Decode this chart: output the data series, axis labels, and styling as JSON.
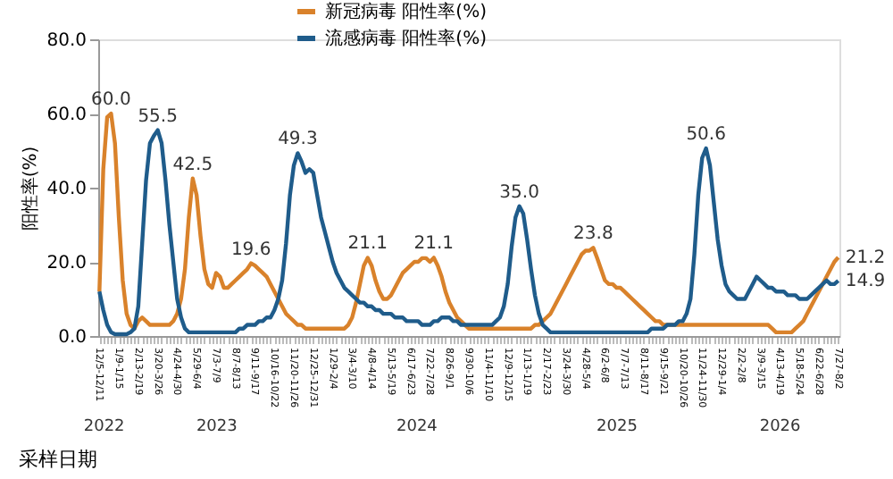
{
  "chart_data": {
    "type": "line",
    "xlabel": "采样日期",
    "ylabel": "阳性率(%)",
    "ylim": [
      0,
      80
    ],
    "yticks": [
      {
        "value": 0,
        "label": "0.0"
      },
      {
        "value": 20,
        "label": "20.0"
      },
      {
        "value": 40,
        "label": "40.0"
      },
      {
        "value": 60,
        "label": "60.0"
      },
      {
        "value": 80,
        "label": "80.0"
      }
    ],
    "grid": false,
    "legend": "top",
    "marker": "none",
    "line_style": "solid",
    "categories": [
      "12/5-12/11",
      null,
      null,
      null,
      null,
      "1/9-1/15",
      null,
      null,
      null,
      null,
      "2/13-2/19",
      null,
      null,
      null,
      null,
      "3/20-3/26",
      null,
      null,
      null,
      null,
      "4/24-4/30",
      null,
      null,
      null,
      null,
      "5/29-6/4",
      null,
      null,
      null,
      null,
      "7/3-7/9",
      null,
      null,
      null,
      null,
      "8/7-8/13",
      null,
      null,
      null,
      null,
      "9/11-9/17",
      null,
      null,
      null,
      null,
      "10/16-10/22",
      null,
      null,
      null,
      null,
      "11/20-11/26",
      null,
      null,
      null,
      null,
      "12/25-12/31",
      null,
      null,
      null,
      null,
      "1/29-2/4",
      null,
      null,
      null,
      null,
      "3/4-3/10",
      null,
      null,
      null,
      null,
      "4/8-4/14",
      null,
      null,
      null,
      null,
      "5/13-5/19",
      null,
      null,
      null,
      null,
      "6/17-6/23",
      null,
      null,
      null,
      null,
      "7/22-7/28",
      null,
      null,
      null,
      null,
      "8/26-9/1",
      null,
      null,
      null,
      null,
      "9/30-10/6",
      null,
      null,
      null,
      null,
      "11/4-11/10",
      null,
      null,
      null,
      null,
      "12/9-12/15",
      null,
      null,
      null,
      null,
      "1/13-1/19",
      null,
      null,
      null,
      null,
      "2/17-2/23",
      null,
      null,
      null,
      null,
      "3/24-3/30",
      null,
      null,
      null,
      null,
      "4/28-5/4",
      null,
      null,
      null,
      null,
      "6/2-6/8",
      null,
      null,
      null,
      null,
      "7/7-7/13",
      null,
      null,
      null,
      null,
      "8/11-8/17",
      null,
      null,
      null,
      null,
      "9/15-9/21",
      null,
      null,
      null,
      null,
      "10/20-10/26",
      null,
      null,
      null,
      null,
      "11/24-11/30",
      null,
      null,
      null,
      null,
      "12/29-1/4",
      null,
      null,
      null,
      null,
      "2/2-2/8",
      null,
      null,
      null,
      null,
      "3/9-3/15",
      null,
      null,
      null,
      null,
      "4/13-4/19",
      null,
      null,
      null,
      null,
      "5/18-5/24",
      null,
      null,
      null,
      null,
      "6/22-6/28",
      null,
      null,
      null,
      null,
      "7/27-8/2"
    ],
    "series": [
      {
        "name": "新冠病毒 阳性率(%)",
        "color": "#d9822b",
        "values": [
          12,
          45,
          59,
          60,
          52,
          32,
          15,
          6,
          3,
          2,
          4,
          5,
          4,
          3,
          3,
          3,
          3,
          3,
          3,
          4,
          6,
          10,
          18,
          32,
          42.5,
          38,
          27,
          18,
          14,
          13,
          17,
          16,
          13,
          13,
          14,
          15,
          16,
          17,
          18,
          19.6,
          19,
          18,
          17,
          16,
          14,
          12,
          10,
          8,
          6,
          5,
          4,
          3,
          3,
          2,
          2,
          2,
          2,
          2,
          2,
          2,
          2,
          2,
          2,
          2,
          3,
          5,
          9,
          14,
          19,
          21.1,
          19,
          15,
          12,
          10,
          10,
          11,
          13,
          15,
          17,
          18,
          19,
          20,
          20,
          21,
          21,
          20,
          21.1,
          19,
          16,
          12,
          9,
          7,
          5,
          4,
          3,
          2,
          2,
          2,
          2,
          2,
          2,
          2,
          2,
          2,
          2,
          2,
          2,
          2,
          2,
          2,
          2,
          2,
          3,
          3,
          4,
          5,
          6,
          8,
          10,
          12,
          14,
          16,
          18,
          20,
          22,
          23,
          23,
          23.8,
          21,
          18,
          15,
          14,
          14,
          13,
          13,
          12,
          11,
          10,
          9,
          8,
          7,
          6,
          5,
          4,
          4,
          3,
          3,
          3,
          3,
          3,
          3,
          3,
          3,
          3,
          3,
          3,
          3,
          3,
          3,
          3,
          3,
          3,
          3,
          3,
          3,
          3,
          3,
          3,
          3,
          3,
          3,
          3,
          3,
          2,
          1,
          1,
          1,
          1,
          1,
          2,
          3,
          4,
          6,
          8,
          10,
          12,
          14,
          16,
          18,
          20,
          21.2
        ],
        "value_labels": [
          null,
          null,
          null,
          "60.0",
          null,
          null,
          null,
          null,
          null,
          null,
          null,
          null,
          null,
          null,
          null,
          null,
          null,
          null,
          null,
          null,
          null,
          null,
          null,
          null,
          "42.5",
          null,
          null,
          null,
          null,
          null,
          null,
          null,
          null,
          null,
          null,
          null,
          null,
          null,
          null,
          "19.6",
          null,
          null,
          null,
          null,
          null,
          null,
          null,
          null,
          null,
          null,
          null,
          null,
          null,
          null,
          null,
          null,
          null,
          null,
          null,
          null,
          null,
          null,
          null,
          null,
          null,
          null,
          null,
          null,
          null,
          "21.1",
          null,
          null,
          null,
          null,
          null,
          null,
          null,
          null,
          null,
          null,
          null,
          null,
          null,
          null,
          null,
          null,
          "21.1",
          null,
          null,
          null,
          null,
          null,
          null,
          null,
          null,
          null,
          null,
          null,
          null,
          null,
          null,
          null,
          null,
          null,
          null,
          null,
          null,
          null,
          null,
          null,
          null,
          null,
          null,
          null,
          null,
          null,
          null,
          null,
          null,
          null,
          null,
          null,
          null,
          null,
          null,
          null,
          null,
          "23.8",
          null,
          null,
          null,
          null,
          null,
          null,
          null,
          null,
          null,
          null,
          null,
          null,
          null,
          null,
          null,
          null,
          null,
          null,
          null,
          null,
          null,
          null,
          null,
          null,
          null,
          null,
          null,
          null,
          null,
          null,
          null,
          null,
          null,
          null,
          null,
          null,
          null,
          null,
          null,
          null,
          null,
          null,
          null,
          null,
          null,
          null,
          null,
          null,
          null,
          null,
          null,
          null,
          null,
          null,
          null,
          null,
          null,
          null,
          null,
          null,
          null,
          null,
          "21.2"
        ]
      },
      {
        "name": "流感病毒 阳性率(%)",
        "color": "#1f5c8b",
        "values": [
          12,
          7,
          3,
          1,
          0.5,
          0.5,
          0.5,
          0.5,
          1,
          2,
          8,
          25,
          42,
          52,
          54,
          55.5,
          52,
          42,
          30,
          20,
          10,
          5,
          2,
          1,
          1,
          1,
          1,
          1,
          1,
          1,
          1,
          1,
          1,
          1,
          1,
          1,
          2,
          2,
          3,
          3,
          3,
          4,
          4,
          5,
          5,
          7,
          10,
          15,
          25,
          38,
          46,
          49.3,
          47,
          44,
          45,
          44,
          38,
          32,
          28,
          24,
          20,
          17,
          15,
          13,
          12,
          11,
          10,
          9,
          9,
          8,
          8,
          7,
          7,
          6,
          6,
          6,
          5,
          5,
          5,
          4,
          4,
          4,
          4,
          3,
          3,
          3,
          4,
          4,
          5,
          5,
          5,
          4,
          4,
          3,
          3,
          3,
          3,
          3,
          3,
          3,
          3,
          3,
          4,
          5,
          8,
          14,
          24,
          32,
          35,
          33,
          26,
          18,
          11,
          6,
          3,
          2,
          1,
          1,
          1,
          1,
          1,
          1,
          1,
          1,
          1,
          1,
          1,
          1,
          1,
          1,
          1,
          1,
          1,
          1,
          1,
          1,
          1,
          1,
          1,
          1,
          1,
          1,
          2,
          2,
          2,
          2,
          3,
          3,
          3,
          4,
          4,
          6,
          10,
          22,
          38,
          48,
          50.6,
          46,
          36,
          26,
          19,
          14,
          12,
          11,
          10,
          10,
          10,
          12,
          14,
          16,
          15,
          14,
          13,
          13,
          12,
          12,
          12,
          11,
          11,
          11,
          10,
          10,
          10,
          11,
          12,
          13,
          14,
          15,
          14,
          14,
          14.9
        ],
        "value_labels": [
          null,
          null,
          null,
          null,
          null,
          null,
          null,
          null,
          null,
          null,
          null,
          null,
          null,
          null,
          null,
          "55.5",
          null,
          null,
          null,
          null,
          null,
          null,
          null,
          null,
          null,
          null,
          null,
          null,
          null,
          null,
          null,
          null,
          null,
          null,
          null,
          null,
          null,
          null,
          null,
          null,
          null,
          null,
          null,
          null,
          null,
          null,
          null,
          null,
          null,
          null,
          null,
          "49.3",
          null,
          null,
          null,
          null,
          null,
          null,
          null,
          null,
          null,
          null,
          null,
          null,
          null,
          null,
          null,
          null,
          null,
          null,
          null,
          null,
          null,
          null,
          null,
          null,
          null,
          null,
          null,
          null,
          null,
          null,
          null,
          null,
          null,
          null,
          null,
          null,
          null,
          null,
          null,
          null,
          null,
          null,
          null,
          null,
          null,
          null,
          null,
          null,
          null,
          null,
          null,
          null,
          null,
          null,
          null,
          null,
          "35.0",
          null,
          null,
          null,
          null,
          null,
          null,
          null,
          null,
          null,
          null,
          null,
          null,
          null,
          null,
          null,
          null,
          null,
          null,
          null,
          null,
          null,
          null,
          null,
          null,
          null,
          null,
          null,
          null,
          null,
          null,
          null,
          null,
          null,
          null,
          null,
          null,
          null,
          null,
          null,
          null,
          null,
          null,
          null,
          null,
          null,
          null,
          null,
          "50.6",
          null,
          null,
          null,
          null,
          null,
          null,
          null,
          null,
          null,
          null,
          null,
          null,
          null,
          null,
          null,
          null,
          null,
          null,
          null,
          null,
          null,
          null,
          null,
          null,
          null,
          null,
          null,
          null,
          null,
          null,
          null,
          null,
          null,
          "14.9"
        ]
      }
    ],
    "annotations": [
      "2022",
      "2023",
      "2024",
      "2025",
      "2026"
    ]
  }
}
